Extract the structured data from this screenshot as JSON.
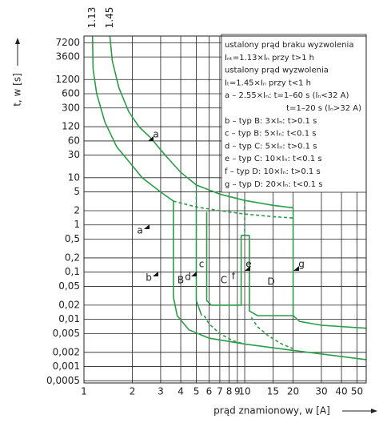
{
  "chart_data": {
    "type": "line",
    "x_label": "prąd znamionowy, w [A]",
    "y_label": "t, w [s]",
    "log_x": true,
    "log_y": true,
    "grid": true,
    "color": "#2a9d48",
    "xlim": [
      1,
      57
    ],
    "ylim": [
      0.00045,
      10000
    ],
    "xticks": [
      1,
      2,
      3,
      4,
      5,
      6,
      7,
      8,
      9,
      10,
      15,
      20,
      30,
      40,
      50
    ],
    "yticks": [
      7200,
      3600,
      1200,
      600,
      300,
      120,
      60,
      30,
      10,
      5,
      2,
      1,
      {
        "value": 0.5,
        "label": "0,5"
      },
      {
        "value": 0.2,
        "label": "0,2"
      },
      {
        "value": 0.1,
        "label": "0,1"
      },
      {
        "value": 0.05,
        "label": "0,05"
      },
      {
        "value": 0.02,
        "label": "0,02"
      },
      {
        "value": 0.01,
        "label": "0,01"
      },
      {
        "value": 0.005,
        "label": "0,005"
      },
      {
        "value": 0.002,
        "label": "0,002"
      },
      {
        "value": 0.001,
        "label": "0,001"
      },
      {
        "value": 0.0005,
        "label": "0,0005"
      }
    ],
    "series": [
      {
        "name": "1.13",
        "dashed": false,
        "x": [
          1.13,
          1.14,
          1.2,
          1.35,
          1.6,
          2,
          2.3,
          3,
          3.6
        ],
        "values": [
          10000,
          2000,
          600,
          150,
          45,
          18,
          10,
          5,
          3.2
        ]
      },
      {
        "name": "1.45",
        "dashed": false,
        "x": [
          1.45,
          1.5,
          1.65,
          1.9,
          2.2,
          2.6,
          3.2,
          4,
          5,
          7,
          10,
          15,
          20
        ],
        "values": [
          10000,
          3000,
          800,
          250,
          120,
          70,
          30,
          13,
          7,
          4.5,
          3.3,
          2.6,
          2.3
        ]
      },
      {
        "dashed": false,
        "x": [
          20,
          20,
          22,
          30,
          57
        ],
        "values": [
          2.3,
          0.012,
          0.009,
          0.0075,
          0.0065
        ]
      },
      {
        "dashed": false,
        "x": [
          3.6,
          3.6,
          3.8,
          4.5,
          6,
          10,
          20,
          57
        ],
        "values": [
          3.2,
          0.03,
          0.012,
          0.006,
          0.004,
          0.003,
          0.0022,
          0.0014
        ]
      },
      {
        "dashed": true,
        "x": [
          3.6,
          5,
          7,
          10,
          15,
          20
        ],
        "values": [
          3.2,
          2.4,
          2,
          1.7,
          1.5,
          1.4
        ]
      },
      {
        "dashed": true,
        "x": [
          5,
          5
        ],
        "values": [
          7,
          2.4
        ]
      },
      {
        "dashed": false,
        "x": [
          5,
          5,
          5.4
        ],
        "values": [
          2.4,
          0.025,
          0.012
        ]
      },
      {
        "dashed": false,
        "x": [
          5.8,
          5.8,
          6.2,
          9.5,
          9.5
        ],
        "values": [
          1.9,
          0.025,
          0.02,
          0.02,
          0.6
        ]
      },
      {
        "dashed": true,
        "x": [
          10,
          10
        ],
        "values": [
          3.3,
          0.6
        ]
      },
      {
        "dashed": false,
        "x": [
          9.5,
          10.7
        ],
        "values": [
          0.6,
          0.6
        ]
      },
      {
        "dashed": false,
        "x": [
          10.7,
          10.7,
          12,
          20
        ],
        "values": [
          0.6,
          0.015,
          0.012,
          0.012
        ]
      },
      {
        "dashed": true,
        "x": [
          5.6,
          6,
          7,
          8.5,
          10
        ],
        "values": [
          0.012,
          0.008,
          0.005,
          0.0035,
          0.003
        ]
      },
      {
        "dashed": true,
        "x": [
          11,
          12,
          14,
          17,
          20
        ],
        "values": [
          0.011,
          0.007,
          0.0045,
          0.003,
          0.0024
        ]
      }
    ],
    "region_labels": [
      "a",
      "a",
      "b",
      "B",
      "d",
      "c",
      "C",
      "f",
      "e",
      "D",
      "g"
    ],
    "legend_text": [
      "ustalony prąd braku wyzwolenia",
      "Iₙₜ=1.13×Iₙ przy t>1 h",
      "ustalony prąd wyzwolenia",
      "Iₜ=1.45×Iₙ przy t<1 h",
      "a – 2.55×Iₙ: t=1–60 s (Iₙ<32 A)",
      "t=1–20 s (Iₙ>32 A)",
      "b – typ B: 3×Iₙ: t>0.1 s",
      "c – typ B: 5×Iₙ: t<0.1 s",
      "d – typ C: 5×Iₙ: t>0.1 s",
      "e – typ C: 10×Iₙ: t<0.1 s",
      "f – typ D: 10×Iₙ: t>0.1 s",
      "g – typ D: 20×Iₙ: t<0.1 s"
    ]
  }
}
